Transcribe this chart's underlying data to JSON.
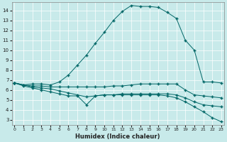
{
  "xlabel": "Humidex (Indice chaleur)",
  "bg_color": "#c8eaea",
  "line_color": "#006666",
  "x_ticks": [
    0,
    1,
    2,
    3,
    4,
    5,
    6,
    7,
    8,
    9,
    10,
    11,
    12,
    13,
    14,
    15,
    16,
    17,
    18,
    19,
    20,
    21,
    22,
    23
  ],
  "y_ticks": [
    3,
    4,
    5,
    6,
    7,
    8,
    9,
    10,
    11,
    12,
    13,
    14
  ],
  "ylim": [
    2.5,
    14.8
  ],
  "xlim": [
    -0.3,
    23.3
  ],
  "line1_x": [
    0,
    1,
    2,
    3,
    4,
    5,
    6,
    7,
    8,
    9,
    10,
    11,
    12,
    13,
    14,
    15,
    16,
    17,
    18,
    19,
    20,
    21,
    22,
    23
  ],
  "line1_y": [
    6.7,
    6.5,
    6.6,
    6.6,
    6.5,
    6.8,
    7.5,
    8.5,
    9.5,
    10.7,
    11.8,
    13.0,
    13.9,
    14.5,
    14.4,
    14.4,
    14.3,
    13.8,
    13.2,
    11.0,
    10.0,
    6.8,
    6.8,
    6.7
  ],
  "line2_x": [
    0,
    1,
    2,
    3,
    4,
    5,
    6,
    7,
    8,
    9,
    10,
    11,
    12,
    13,
    14,
    15,
    16,
    17,
    18,
    19,
    20,
    21,
    22,
    23
  ],
  "line2_y": [
    6.7,
    6.5,
    6.4,
    6.4,
    6.3,
    6.3,
    6.3,
    6.3,
    6.3,
    6.3,
    6.3,
    6.4,
    6.4,
    6.5,
    6.6,
    6.6,
    6.6,
    6.6,
    6.6,
    6.0,
    5.5,
    5.4,
    5.3,
    5.2
  ],
  "line3_x": [
    0,
    1,
    2,
    3,
    4,
    5,
    6,
    7,
    8,
    9,
    10,
    11,
    12,
    13,
    14,
    15,
    16,
    17,
    18,
    19,
    20,
    21,
    22,
    23
  ],
  "line3_y": [
    6.7,
    6.5,
    6.3,
    6.2,
    6.1,
    5.9,
    5.7,
    5.5,
    5.3,
    5.4,
    5.5,
    5.5,
    5.6,
    5.6,
    5.6,
    5.6,
    5.6,
    5.6,
    5.5,
    5.2,
    4.8,
    4.5,
    4.4,
    4.3
  ],
  "line4_x": [
    0,
    1,
    2,
    3,
    4,
    5,
    6,
    7,
    8,
    9,
    10,
    11,
    12,
    13,
    14,
    15,
    16,
    17,
    18,
    19,
    20,
    21,
    22,
    23
  ],
  "line4_y": [
    6.7,
    6.4,
    6.2,
    6.0,
    5.8,
    5.6,
    5.4,
    5.4,
    4.5,
    5.4,
    5.5,
    5.5,
    5.5,
    5.5,
    5.5,
    5.5,
    5.5,
    5.4,
    5.2,
    4.8,
    4.3,
    3.8,
    3.2,
    2.8
  ]
}
